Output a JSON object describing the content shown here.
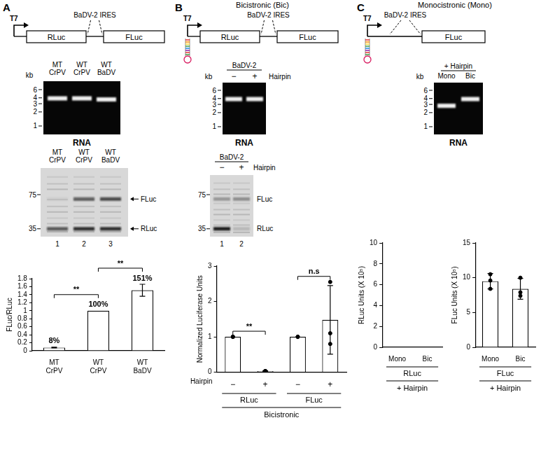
{
  "panel_labels": [
    "A",
    "B",
    "C"
  ],
  "panel_titles": [
    null,
    "Bicistronic (Bic)",
    "Monocistronic (Mono)"
  ],
  "diagrams": [
    {
      "promoter": "T7",
      "ires": "BaDV-2 IRES",
      "genes": [
        "RLuc",
        "FLuc"
      ],
      "hairpin": false
    },
    {
      "promoter": "T7",
      "ires": "BaDV-2 IRES",
      "genes": [
        "RLuc",
        "FLuc"
      ],
      "hairpin": true
    },
    {
      "promoter": "T7",
      "ires": "BaDV-2 IRES",
      "genes": [
        "FLuc"
      ],
      "hairpin": true
    }
  ],
  "rna_gels": [
    {
      "lanes": [
        "MT CrPV",
        "WT CrPV",
        "WT BaDV"
      ],
      "unit": "kb",
      "markers": [
        6,
        4,
        3,
        2,
        1
      ],
      "bands_kb": [
        3.9,
        3.9,
        3.7
      ],
      "caption": "RNA"
    },
    {
      "header": "BaDV-2",
      "row_label": "Hairpin",
      "lanes": [
        "−",
        "+"
      ],
      "unit": "kb",
      "markers": [
        6,
        4,
        3,
        2,
        1
      ],
      "bands_kb": [
        3.9,
        3.9
      ],
      "caption": "RNA"
    },
    {
      "header": "+ Hairpin",
      "lanes": [
        "Mono",
        "Bic"
      ],
      "unit": "kb",
      "markers": [
        6,
        4,
        3,
        2,
        1
      ],
      "bands_kb": [
        2.8,
        3.9
      ],
      "caption": "RNA"
    }
  ],
  "protein_gels": [
    {
      "lanes": [
        "MT CrPV",
        "WT CrPV",
        "WT BaDV"
      ],
      "markers": [
        75,
        35
      ],
      "bands": [
        {
          "label": "FLuc",
          "kda": 68
        },
        {
          "label": "RLuc",
          "kda": 35
        }
      ],
      "lane_numbers": [
        1,
        2,
        3
      ]
    },
    {
      "header": "BaDV-2",
      "row_label": "Hairpin",
      "lanes": [
        "−",
        "+"
      ],
      "markers": [
        75,
        35
      ],
      "bands": [
        {
          "label": "FLuc",
          "kda": 68
        },
        {
          "label": "RLuc",
          "kda": 35
        }
      ],
      "lane_numbers": [
        1,
        2
      ]
    }
  ],
  "chart_data": [
    {
      "type": "bar",
      "ylabel": "FLuc/RLuc",
      "categories": [
        "MT CrPV",
        "WT CrPV",
        "WT BaDV"
      ],
      "values": [
        0.08,
        1.0,
        1.51
      ],
      "errors": [
        0.01,
        null,
        0.15
      ],
      "data_labels": true,
      "value_labels": [
        "8%",
        "100%",
        "151%"
      ],
      "color": "#ffffff",
      "ylim": [
        0,
        1.8
      ],
      "yticks": [
        0,
        0.2,
        0.4,
        0.6,
        0.8,
        1,
        1.2,
        1.4,
        1.6,
        1.8
      ],
      "grid": false,
      "annotations": [
        {
          "text": "**",
          "from": 0,
          "to": 1
        },
        {
          "text": "**",
          "from": 1,
          "to": 2
        }
      ]
    },
    {
      "type": "bar",
      "ylabel": "Normalized Luciferase Units",
      "row_label": "Hairpin",
      "categories": [
        "−",
        "+",
        "−",
        "+"
      ],
      "groups": [
        {
          "label": "RLuc",
          "span": [
            0,
            1
          ]
        },
        {
          "label": "FLuc",
          "span": [
            2,
            3
          ]
        }
      ],
      "group_title": "Bicistronic",
      "values": [
        1,
        0.03,
        1,
        1.48
      ],
      "errors": [
        0,
        0.01,
        0,
        0.97
      ],
      "points": [
        [
          1,
          1,
          1
        ],
        [
          0.03,
          0.03,
          0.03
        ],
        [
          1,
          1,
          1
        ],
        [
          2.55,
          1.1,
          0.8
        ]
      ],
      "marker": "circle",
      "color": "#ffffff",
      "ylim": [
        0,
        3
      ],
      "yticks": [
        0,
        1,
        2,
        3
      ],
      "grid": false,
      "annotations": [
        {
          "text": "**",
          "from": 0,
          "to": 1
        },
        {
          "text": "n.s",
          "from": 2,
          "to": 3
        }
      ]
    },
    {
      "type": "bar",
      "ylabel": "RLuc Units (X 10⁵)",
      "categories": [
        "Mono",
        "Bic"
      ],
      "groups": [
        {
          "label": "RLuc",
          "span": [
            0,
            1
          ]
        }
      ],
      "group_title": "+ Hairpin",
      "values": [
        0.02,
        0.02
      ],
      "color": "#ffffff",
      "ylim": [
        0,
        10
      ],
      "yticks": [
        0,
        2,
        4,
        6,
        8,
        10
      ],
      "grid": false
    },
    {
      "type": "bar",
      "ylabel": "FLuc Units (X 10⁵)",
      "categories": [
        "Mono",
        "Bic"
      ],
      "groups": [
        {
          "label": "FLuc",
          "span": [
            0,
            1
          ]
        }
      ],
      "group_title": "+ Hairpin",
      "values": [
        9.5,
        8.4
      ],
      "errors": [
        1.1,
        1.5
      ],
      "points": [
        [
          10.5,
          9.6,
          8.4
        ],
        [
          10,
          7.9,
          7.4
        ]
      ],
      "marker": "circle",
      "color": "#ffffff",
      "ylim": [
        0,
        15
      ],
      "yticks": [
        0,
        5,
        10,
        15
      ],
      "grid": false
    }
  ]
}
